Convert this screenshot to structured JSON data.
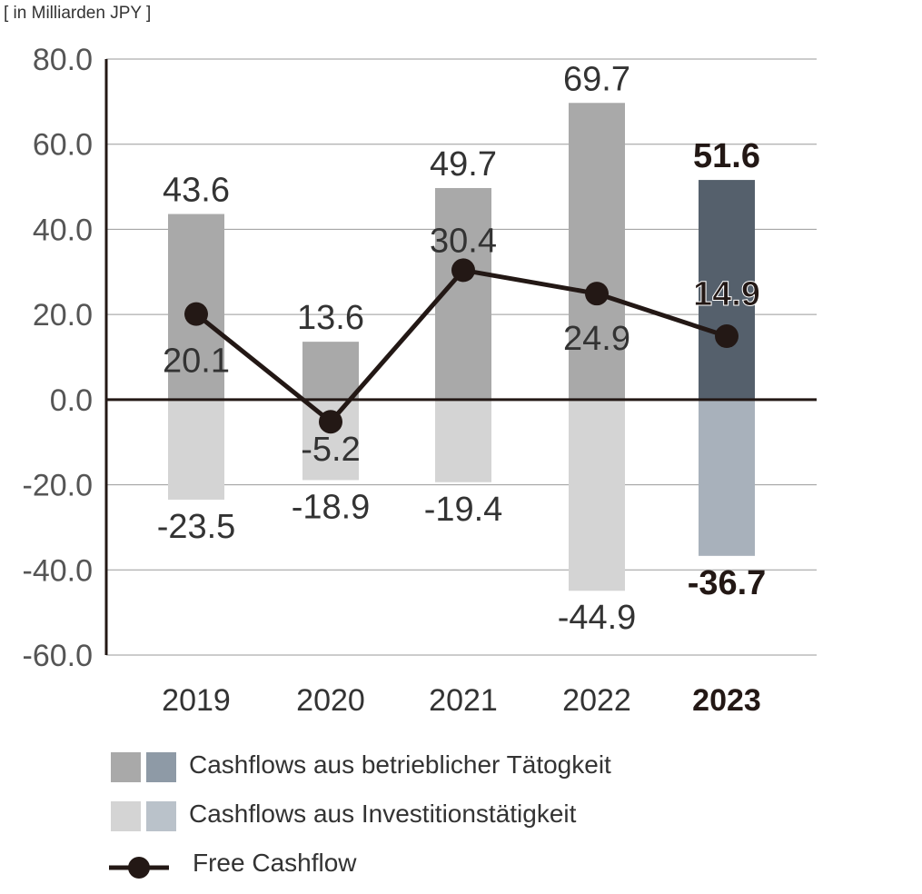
{
  "unit_label": "[ in Milliarden JPY ]",
  "chart_data": {
    "type": "bar",
    "categories": [
      "2019",
      "2020",
      "2021",
      "2022",
      "2023"
    ],
    "highlight_category": "2023",
    "ylim": [
      -60,
      80
    ],
    "yticks": [
      80,
      60,
      40,
      20,
      0,
      -20,
      -40,
      -60
    ],
    "ytick_labels": [
      "80.0",
      "60.0",
      "40.0",
      "20.0",
      "0.0",
      "-20.0",
      "-40.0",
      "-60.0"
    ],
    "grid": true,
    "series": [
      {
        "name": "Cashflows aus betrieblicher Tätogkeit",
        "kind": "bar",
        "values": [
          43.6,
          13.6,
          49.7,
          69.7,
          51.6
        ],
        "labels": [
          "43.6",
          "13.6",
          "49.7",
          "69.7",
          "51.6"
        ],
        "color": "#a9a9a9",
        "highlight_color": "#55606c"
      },
      {
        "name": "Cashflows aus Investitionstätigkeit",
        "kind": "bar",
        "values": [
          -23.5,
          -18.9,
          -19.4,
          -44.9,
          -36.7
        ],
        "labels": [
          "-23.5",
          "-18.9",
          "-19.4",
          "-44.9",
          "-36.7"
        ],
        "color": "#d4d4d4",
        "highlight_color": "#a8b1bb"
      },
      {
        "name": "Free Cashflow",
        "kind": "line",
        "values": [
          20.1,
          -5.2,
          30.4,
          24.9,
          14.9
        ],
        "labels": [
          "20.1",
          "-5.2",
          "30.4",
          "24.9",
          "14.9"
        ],
        "color": "#231815"
      }
    ],
    "legend": {
      "placement": "bottom-left",
      "swatches": [
        [
          "#a9a9a9",
          "#8e9aa6"
        ],
        [
          "#d4d4d4",
          "#bac2ca"
        ]
      ]
    }
  }
}
